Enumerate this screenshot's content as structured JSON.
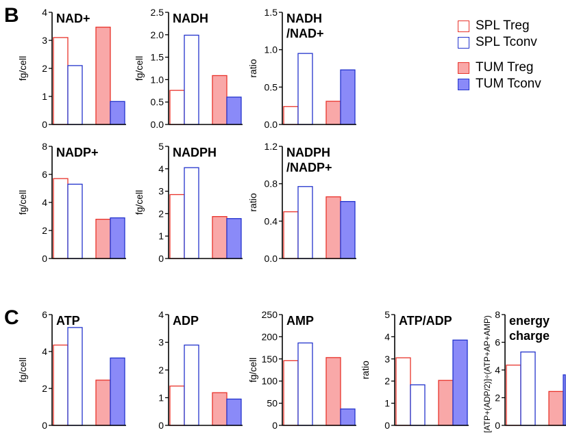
{
  "panels": {
    "b": "B",
    "c": "C"
  },
  "legend": [
    {
      "label": "SPL Treg",
      "border": "#e8322a",
      "fill": "#ffffff"
    },
    {
      "label": "SPL Tconv",
      "border": "#2233cc",
      "fill": "#ffffff"
    },
    {
      "label": "TUM Treg",
      "border": "#e8322a",
      "fill": "#f9a8a8"
    },
    {
      "label": "TUM Tconv",
      "border": "#2233cc",
      "fill": "#8a8af8"
    }
  ],
  "colors": {
    "spl_treg": {
      "stroke": "#e8322a",
      "fill": "#ffffff"
    },
    "spl_tconv": {
      "stroke": "#2233cc",
      "fill": "#ffffff"
    },
    "tum_treg": {
      "stroke": "#e8322a",
      "fill": "#f9a8a8"
    },
    "tum_tconv": {
      "stroke": "#2233cc",
      "fill": "#8a8af8"
    }
  },
  "chart_data": [
    {
      "type": "bar",
      "title": [
        "NAD+"
      ],
      "ylabel": "fg/cell",
      "ylim": [
        0,
        4
      ],
      "ticks": [
        "0",
        "1",
        "2",
        "3",
        "4"
      ],
      "categories": [
        "SPL Treg",
        "SPL Tconv",
        "TUM Treg",
        "TUM Tconv"
      ],
      "values": [
        3.1,
        2.1,
        3.47,
        0.82
      ]
    },
    {
      "type": "bar",
      "title": [
        "NADH"
      ],
      "ylabel": "fg/cell",
      "ylim": [
        0,
        2.5
      ],
      "ticks": [
        "0.0",
        "0.5",
        "1.0",
        "1.5",
        "2.0",
        "2.5"
      ],
      "categories": [
        "SPL Treg",
        "SPL Tconv",
        "TUM Treg",
        "TUM Tconv"
      ],
      "values": [
        0.76,
        1.99,
        1.09,
        0.61
      ]
    },
    {
      "type": "bar",
      "title": [
        "NADH",
        "/NAD+"
      ],
      "ylabel": "ratio",
      "ylim": [
        0,
        1.5
      ],
      "ticks": [
        "0.0",
        "0.5",
        "1.0",
        "1.5"
      ],
      "categories": [
        "SPL Treg",
        "SPL Tconv",
        "TUM Treg",
        "TUM Tconv"
      ],
      "values": [
        0.24,
        0.95,
        0.31,
        0.73
      ]
    },
    {
      "type": "bar",
      "title": [
        "NADP+"
      ],
      "ylabel": "fg/cell",
      "ylim": [
        0,
        8
      ],
      "ticks": [
        "0",
        "2",
        "4",
        "6",
        "8"
      ],
      "categories": [
        "SPL Treg",
        "SPL Tconv",
        "TUM Treg",
        "TUM Tconv"
      ],
      "values": [
        5.7,
        5.3,
        2.8,
        2.9
      ]
    },
    {
      "type": "bar",
      "title": [
        "NADPH"
      ],
      "ylabel": "fg/cell",
      "ylim": [
        0,
        5
      ],
      "ticks": [
        "0",
        "1",
        "2",
        "3",
        "4",
        "5"
      ],
      "categories": [
        "SPL Treg",
        "SPL Tconv",
        "TUM Treg",
        "TUM Tconv"
      ],
      "values": [
        2.85,
        4.05,
        1.87,
        1.78
      ]
    },
    {
      "type": "bar",
      "title": [
        "NADPH",
        "/NADP+"
      ],
      "ylabel": "ratio",
      "ylim": [
        0,
        1.2
      ],
      "ticks": [
        "0.0",
        "0.4",
        "0.8",
        "1.2"
      ],
      "categories": [
        "SPL Treg",
        "SPL Tconv",
        "TUM Treg",
        "TUM Tconv"
      ],
      "values": [
        0.5,
        0.77,
        0.66,
        0.61
      ]
    },
    {
      "type": "bar",
      "title": [
        "ATP"
      ],
      "ylabel": "fg/cell",
      "ylim": [
        0,
        6
      ],
      "ticks": [
        "0",
        "2",
        "4",
        "6"
      ],
      "categories": [
        "SPL Treg",
        "SPL Tconv",
        "TUM Treg",
        "TUM Tconv"
      ],
      "values": [
        4.35,
        5.3,
        2.45,
        3.65
      ]
    },
    {
      "type": "bar",
      "title": [
        "ADP"
      ],
      "ylabel": "",
      "ylim": [
        0,
        4
      ],
      "ticks": [
        "0",
        "1",
        "2",
        "3",
        "4"
      ],
      "categories": [
        "SPL Treg",
        "SPL Tconv",
        "TUM Treg",
        "TUM Tconv"
      ],
      "values": [
        1.42,
        2.9,
        1.18,
        0.95
      ]
    },
    {
      "type": "bar",
      "title": [
        "AMP"
      ],
      "ylabel": "fg/cell",
      "ylim": [
        0,
        250
      ],
      "ticks": [
        "0",
        "50",
        "100",
        "150",
        "200",
        "250"
      ],
      "categories": [
        "SPL Treg",
        "SPL Tconv",
        "TUM Treg",
        "TUM Tconv"
      ],
      "values": [
        146,
        186,
        153,
        37
      ]
    },
    {
      "type": "bar",
      "title": [
        "ATP/ADP"
      ],
      "ylabel": "ratio",
      "ylim": [
        0,
        5
      ],
      "ticks": [
        "0",
        "1",
        "2",
        "3",
        "4",
        "5"
      ],
      "categories": [
        "SPL Treg",
        "SPL Tconv",
        "TUM Treg",
        "TUM Tconv"
      ],
      "values": [
        3.05,
        1.83,
        2.03,
        3.85
      ]
    },
    {
      "type": "bar",
      "title": [
        "energy",
        "charge"
      ],
      "ylabel": "[ATP+(ADP/2)]÷(ATP+AP+AMP)",
      "ylim": [
        0,
        8
      ],
      "ticks": [
        "0",
        "2",
        "4",
        "6",
        "8"
      ],
      "categories": [
        "SPL Treg",
        "SPL Tconv",
        "TUM Treg",
        "TUM Tconv"
      ],
      "values": [
        4.35,
        5.3,
        2.45,
        3.65
      ]
    }
  ]
}
